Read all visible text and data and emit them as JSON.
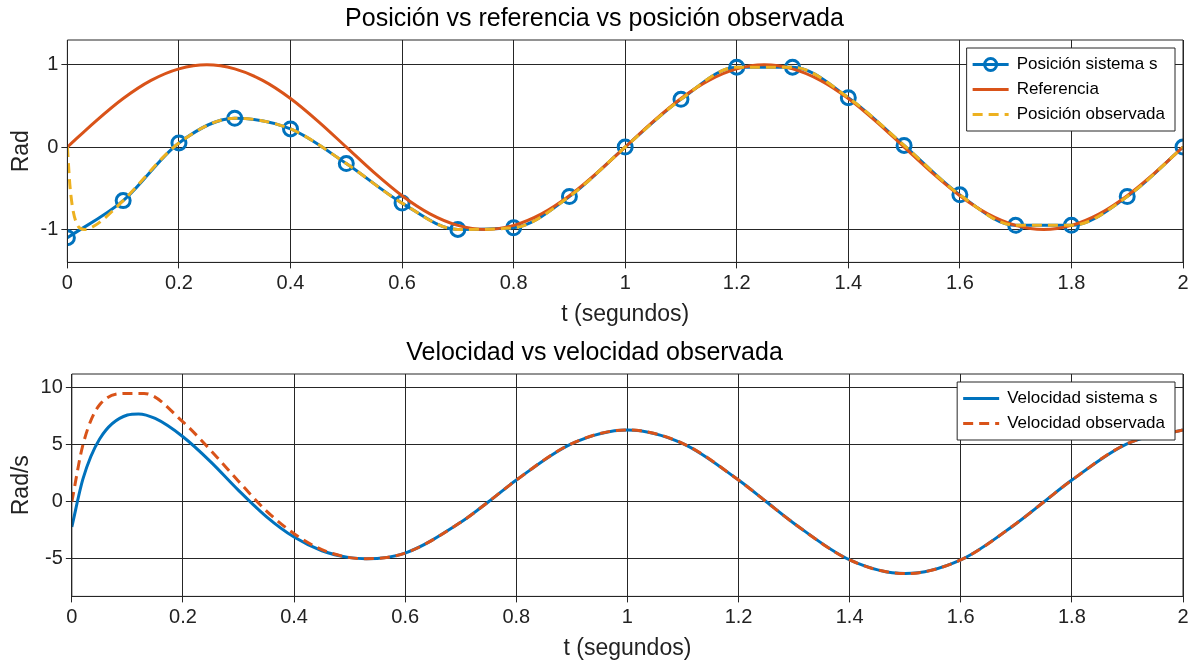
{
  "chart_data": [
    {
      "type": "line",
      "title": "Posición vs referencia vs posición observada",
      "xlabel": "t (segundos)",
      "ylabel": "Rad",
      "xlim": [
        0,
        2
      ],
      "xticks": [
        0,
        0.2,
        0.4,
        0.6,
        0.8,
        1,
        1.2,
        1.4,
        1.6,
        1.8,
        2
      ],
      "ylim": [
        -1.4,
        1.3
      ],
      "yticks": [
        -1,
        0,
        1
      ],
      "grid": true,
      "legend": "top right",
      "series": [
        {
          "name": "Posición sistema s",
          "color": "#0072bd",
          "marker": "circle",
          "line_style": "solid",
          "x": [
            0,
            0.1,
            0.2,
            0.3,
            0.4,
            0.5,
            0.6,
            0.7,
            0.8,
            0.9,
            1,
            1.1,
            1.2,
            1.3,
            1.4,
            1.5,
            1.6,
            1.7,
            1.8,
            1.9,
            2
          ],
          "values": [
            -1.1,
            -0.65,
            0.05,
            0.35,
            0.22,
            -0.2,
            -0.68,
            -1.0,
            -0.98,
            -0.6,
            0,
            0.58,
            0.97,
            0.97,
            0.6,
            0.02,
            -0.58,
            -0.95,
            -0.95,
            -0.6,
            0
          ]
        },
        {
          "name": "Referencia",
          "color": "#d95319",
          "marker": "none",
          "line_style": "solid",
          "x": [
            0,
            0.05,
            0.1,
            0.15,
            0.2,
            0.25,
            0.3,
            0.35,
            0.4,
            0.45,
            0.5,
            0.55,
            0.6,
            0.65,
            0.7,
            0.75,
            0.8,
            0.85,
            0.9,
            0.95,
            1,
            1.05,
            1.1,
            1.15,
            1.2,
            1.25,
            1.3,
            1.35,
            1.4,
            1.45,
            1.5,
            1.55,
            1.6,
            1.65,
            1.7,
            1.75,
            1.8,
            1.85,
            1.9,
            1.95,
            2
          ],
          "values": [
            0,
            0.31,
            0.59,
            0.81,
            0.95,
            1,
            0.95,
            0.81,
            0.59,
            0.31,
            0,
            -0.31,
            -0.59,
            -0.81,
            -0.95,
            -1,
            -0.95,
            -0.81,
            -0.59,
            -0.31,
            0,
            0.31,
            0.59,
            0.81,
            0.95,
            1,
            0.95,
            0.81,
            0.59,
            0.31,
            0,
            -0.31,
            -0.59,
            -0.81,
            -0.95,
            -1,
            -0.95,
            -0.81,
            -0.59,
            -0.31,
            0
          ]
        },
        {
          "name": "Posición observada",
          "color": "#edb120",
          "marker": "none",
          "line_style": "dashed",
          "x": [
            0,
            0.005,
            0.015,
            0.03,
            0.05,
            0.1,
            0.2,
            0.3,
            0.4,
            0.5,
            0.6,
            0.7,
            0.8,
            0.9,
            1,
            1.1,
            1.2,
            1.3,
            1.4,
            1.5,
            1.6,
            1.7,
            1.8,
            1.9,
            2
          ],
          "values": [
            0,
            -0.5,
            -0.9,
            -1.0,
            -0.95,
            -0.65,
            0.05,
            0.35,
            0.22,
            -0.2,
            -0.68,
            -1.0,
            -0.98,
            -0.6,
            0,
            0.58,
            0.97,
            0.97,
            0.6,
            0.02,
            -0.58,
            -0.95,
            -0.95,
            -0.6,
            0
          ]
        }
      ]
    },
    {
      "type": "line",
      "title": "Velocidad vs velocidad observada",
      "xlabel": "t (segundos)",
      "ylabel": "Rad/s",
      "xlim": [
        0,
        2
      ],
      "xticks": [
        0,
        0.2,
        0.4,
        0.6,
        0.8,
        1,
        1.2,
        1.4,
        1.6,
        1.8,
        2
      ],
      "ylim": [
        -8.3,
        11.2
      ],
      "yticks": [
        -5,
        0,
        5,
        10
      ],
      "grid": true,
      "legend": "top right",
      "series": [
        {
          "name": "Velocidad sistema s",
          "color": "#0072bd",
          "marker": "none",
          "line_style": "solid",
          "x": [
            0,
            0.02,
            0.05,
            0.1,
            0.12,
            0.15,
            0.2,
            0.25,
            0.3,
            0.35,
            0.4,
            0.45,
            0.5,
            0.53,
            0.6,
            0.7,
            0.75,
            0.8,
            0.9,
            1,
            1.1,
            1.2,
            1.25,
            1.3,
            1.4,
            1.5,
            1.6,
            1.7,
            1.75,
            1.8,
            1.9,
            2
          ],
          "values": [
            -2.2,
            2,
            5.5,
            7.6,
            7.7,
            7.3,
            5.7,
            3.5,
            1,
            -1.3,
            -3.1,
            -4.3,
            -4.9,
            -5.0,
            -4.5,
            -1.8,
            0,
            1.9,
            5.1,
            6.3,
            5.1,
            1.9,
            0,
            -1.9,
            -5.1,
            -6.3,
            -5.1,
            -1.9,
            0,
            1.9,
            5.1,
            6.3
          ]
        },
        {
          "name": "Velocidad observada",
          "color": "#d95319",
          "marker": "none",
          "line_style": "dashed",
          "x": [
            0,
            0.02,
            0.05,
            0.1,
            0.13,
            0.2,
            0.25,
            0.3,
            0.35,
            0.4,
            0.45,
            0.5,
            0.53,
            0.6,
            0.7,
            0.75,
            0.8,
            0.9,
            1,
            1.1,
            1.2,
            1.25,
            1.3,
            1.4,
            1.5,
            1.6,
            1.7,
            1.75,
            1.8,
            1.9,
            2
          ],
          "values": [
            0,
            5,
            8.5,
            9.5,
            9.5,
            7,
            4.5,
            1.8,
            -0.8,
            -2.8,
            -4.2,
            -4.9,
            -5.0,
            -4.5,
            -1.8,
            0,
            1.9,
            5.1,
            6.3,
            5.1,
            1.9,
            0,
            -1.9,
            -5.1,
            -6.3,
            -5.1,
            -1.9,
            0,
            1.9,
            5.1,
            6.3
          ]
        }
      ]
    }
  ]
}
